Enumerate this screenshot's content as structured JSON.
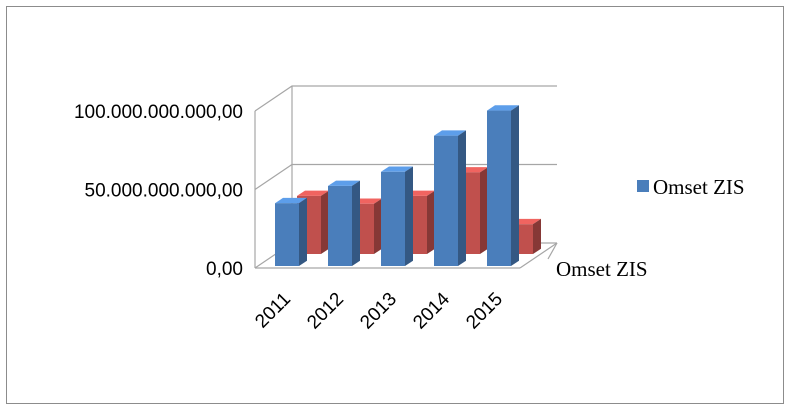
{
  "chart_data": {
    "type": "bar",
    "categories": [
      "2011",
      "2012",
      "2013",
      "2014",
      "2015"
    ],
    "series": [
      {
        "name": "Omset ZIS",
        "color": "#4a7ebb",
        "values": [
          40000000000,
          51000000000,
          60000000000,
          83000000000,
          99000000000
        ]
      },
      {
        "color": "#c0504d",
        "values": [
          37000000000,
          32000000000,
          37000000000,
          52000000000,
          19000000000
        ]
      }
    ],
    "y_ticks": [
      {
        "value": 0,
        "label": "0,00"
      },
      {
        "value": 50000000000,
        "label": "50.000.000.000,00"
      },
      {
        "value": 100000000000,
        "label": "100.000.000.000,00"
      }
    ],
    "ylim": [
      0,
      100000000000
    ],
    "depth_axis_label": "Omset ZIS",
    "legend": {
      "position": "right",
      "entries": [
        "Omset ZIS"
      ]
    },
    "grid": true
  }
}
